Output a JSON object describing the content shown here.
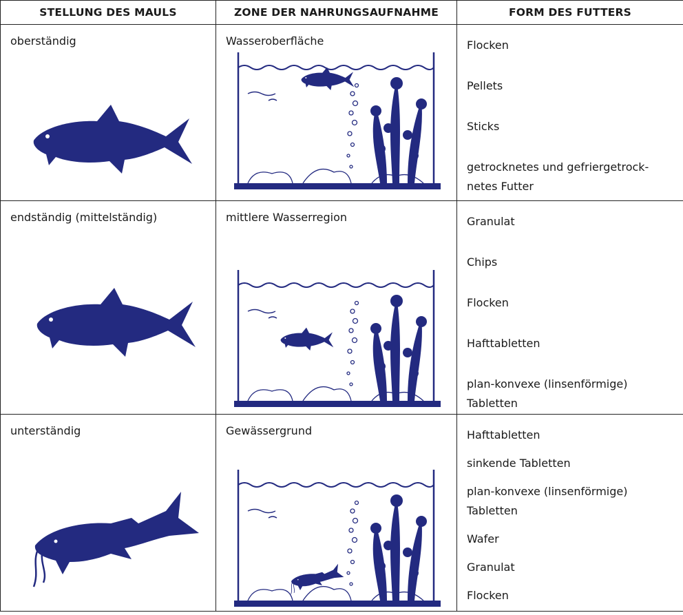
{
  "table": {
    "headers": [
      "STELLUNG DES MAULS",
      "ZONE DER NAHRUNGSAUFNAHME",
      "FORM DES FUTTERS"
    ],
    "rows": [
      {
        "mouth": "oberständig",
        "zone": "Wasseroberfläche",
        "foods": [
          "Flocken",
          "Pellets",
          "Sticks",
          "getrocknetes und gefriergetrock-\nnetes Futter"
        ]
      },
      {
        "mouth": "endständig (mittelständig)",
        "zone": "mittlere Wasserregion",
        "foods": [
          "Granulat",
          "Chips",
          "Flocken",
          "Hafttabletten",
          "plan-konvexe (linsenförmige)\nTabletten"
        ]
      },
      {
        "mouth": "unterständig",
        "zone": "Gewässergrund",
        "foods": [
          "Hafttabletten",
          "sinkende Tabletten",
          "plan-konvexe (linsenförmige)\nTabletten",
          "Wafer",
          "Granulat",
          "Flocken"
        ]
      }
    ]
  }
}
